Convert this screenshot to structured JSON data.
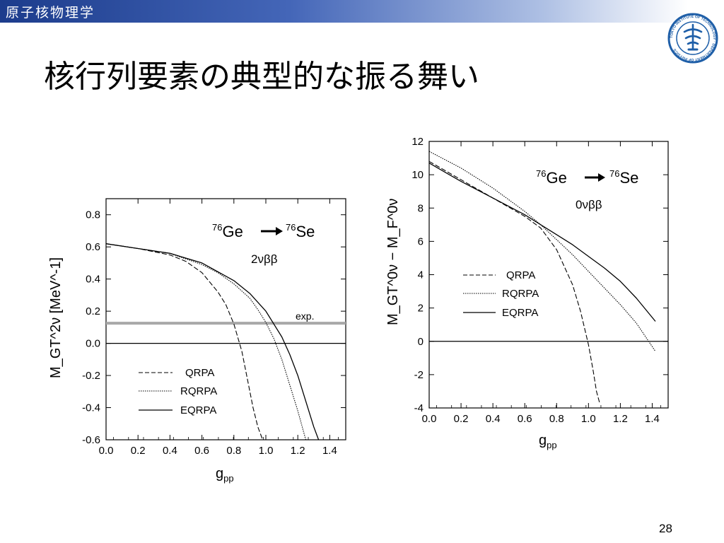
{
  "header": {
    "course": "原子核物理学"
  },
  "slide": {
    "title": "核行列要素の典型的な振る舞い",
    "page_number": "28"
  },
  "colors": {
    "header_start": "#1c3c8c",
    "header_end": "#ffffff",
    "exp_band": "#a8a8a8",
    "logo": "#1f5fa8"
  },
  "logo": {
    "icon": "university-seal-icon",
    "text": "TOKYO INSTITUTE OF TECHNOLOGY · DEPARTMENT OF PHYSICS"
  },
  "chart_data": [
    {
      "type": "line",
      "reaction": {
        "parent_mass": "76",
        "parent": "Ge",
        "daughter_mass": "76",
        "daughter": "Se"
      },
      "decay_mode": "2νββ",
      "xlabel_main": "g",
      "xlabel_sub": "pp",
      "ylabel": "M_GT^2ν [MeV^-1]",
      "xlim": [
        0.0,
        1.5
      ],
      "ylim": [
        -0.6,
        0.9
      ],
      "xticks": [
        "0.0",
        "0.2",
        "0.4",
        "0.6",
        "0.8",
        "1.0",
        "1.2",
        "1.4"
      ],
      "yticks": [
        "-0.6",
        "-0.4",
        "-0.2",
        "0.0",
        "0.2",
        "0.4",
        "0.6",
        "0.8"
      ],
      "annotation": "exp.",
      "exp_value": 0.125,
      "legend_position": "bottom-left",
      "series": [
        {
          "name": "QRPA",
          "dash": "dashed",
          "x": [
            0.0,
            0.2,
            0.4,
            0.5,
            0.6,
            0.7,
            0.75,
            0.8,
            0.85,
            0.88,
            0.92,
            0.95,
            0.98
          ],
          "y": [
            0.62,
            0.59,
            0.55,
            0.51,
            0.44,
            0.32,
            0.24,
            0.12,
            -0.05,
            -0.2,
            -0.4,
            -0.52,
            -0.6
          ]
        },
        {
          "name": "RQRPA",
          "dash": "dotted",
          "x": [
            0.0,
            0.2,
            0.4,
            0.6,
            0.7,
            0.8,
            0.9,
            0.95,
            1.0,
            1.05,
            1.1,
            1.15,
            1.2,
            1.25
          ],
          "y": [
            0.62,
            0.59,
            0.56,
            0.49,
            0.44,
            0.37,
            0.28,
            0.21,
            0.13,
            0.03,
            -0.1,
            -0.26,
            -0.42,
            -0.6
          ]
        },
        {
          "name": "EQRPA",
          "dash": "solid",
          "x": [
            0.0,
            0.2,
            0.4,
            0.6,
            0.8,
            0.9,
            1.0,
            1.05,
            1.1,
            1.15,
            1.2,
            1.25,
            1.3,
            1.33
          ],
          "y": [
            0.62,
            0.59,
            0.56,
            0.5,
            0.39,
            0.31,
            0.2,
            0.12,
            0.04,
            -0.07,
            -0.2,
            -0.36,
            -0.52,
            -0.6
          ]
        }
      ]
    },
    {
      "type": "line",
      "reaction": {
        "parent_mass": "76",
        "parent": "Ge",
        "daughter_mass": "76",
        "daughter": "Se"
      },
      "decay_mode": "0νββ",
      "xlabel_main": "g",
      "xlabel_sub": "pp",
      "ylabel": "M_GT^0ν − M_F^0ν",
      "xlim": [
        0.0,
        1.5
      ],
      "ylim": [
        -4,
        12
      ],
      "xticks": [
        "0.0",
        "0.2",
        "0.4",
        "0.6",
        "0.8",
        "1.0",
        "1.2",
        "1.4"
      ],
      "yticks": [
        "-4",
        "-2",
        "0",
        "2",
        "4",
        "6",
        "8",
        "10",
        "12"
      ],
      "legend_position": "middle-left",
      "series": [
        {
          "name": "QRPA",
          "dash": "dashed",
          "x": [
            0.0,
            0.2,
            0.4,
            0.6,
            0.7,
            0.8,
            0.9,
            0.95,
            1.0,
            1.03,
            1.05,
            1.07
          ],
          "y": [
            10.8,
            9.7,
            8.6,
            7.5,
            6.8,
            5.5,
            3.4,
            1.8,
            -0.2,
            -1.8,
            -3.0,
            -3.7
          ]
        },
        {
          "name": "RQRPA",
          "dash": "dotted",
          "x": [
            0.0,
            0.2,
            0.4,
            0.6,
            0.7,
            0.8,
            0.9,
            1.0,
            1.1,
            1.2,
            1.3,
            1.42
          ],
          "y": [
            11.4,
            10.4,
            9.2,
            7.8,
            7.0,
            6.1,
            5.2,
            4.2,
            3.2,
            2.2,
            1.1,
            -0.6
          ]
        },
        {
          "name": "EQRPA",
          "dash": "solid",
          "x": [
            0.0,
            0.2,
            0.4,
            0.6,
            0.7,
            0.8,
            0.9,
            1.0,
            1.1,
            1.2,
            1.3,
            1.42
          ],
          "y": [
            10.7,
            9.6,
            8.6,
            7.6,
            7.0,
            6.4,
            5.8,
            5.1,
            4.4,
            3.6,
            2.6,
            1.2
          ]
        }
      ]
    }
  ]
}
